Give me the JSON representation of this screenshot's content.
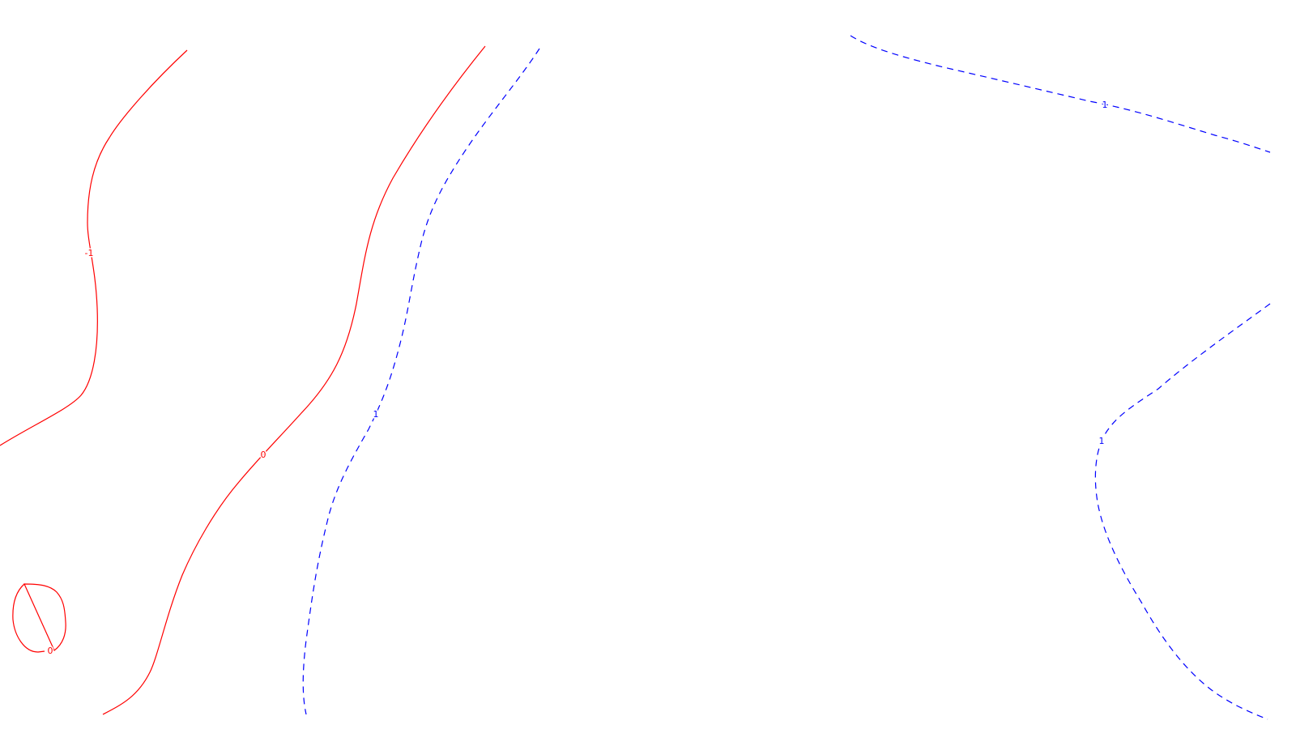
{
  "chart_data": {
    "type": "contour",
    "title": "",
    "xlabel": "",
    "ylabel": "",
    "grid": false,
    "legend": "none",
    "colors": {
      "negative": "#ff0000",
      "zero": "#ff0000",
      "positive": "#0000ff",
      "background": "#ffffff"
    },
    "levels": [
      {
        "name": "contour-level-minus-1",
        "label": "-1",
        "value": -1,
        "color": "#ff0000",
        "style": "solid"
      },
      {
        "name": "contour-level-0",
        "label": "0",
        "value": 0,
        "color": "#ff0000",
        "style": "solid"
      },
      {
        "name": "contour-level-1",
        "label": "1",
        "value": 1,
        "color": "#0000ff",
        "style": "dashed"
      }
    ]
  }
}
